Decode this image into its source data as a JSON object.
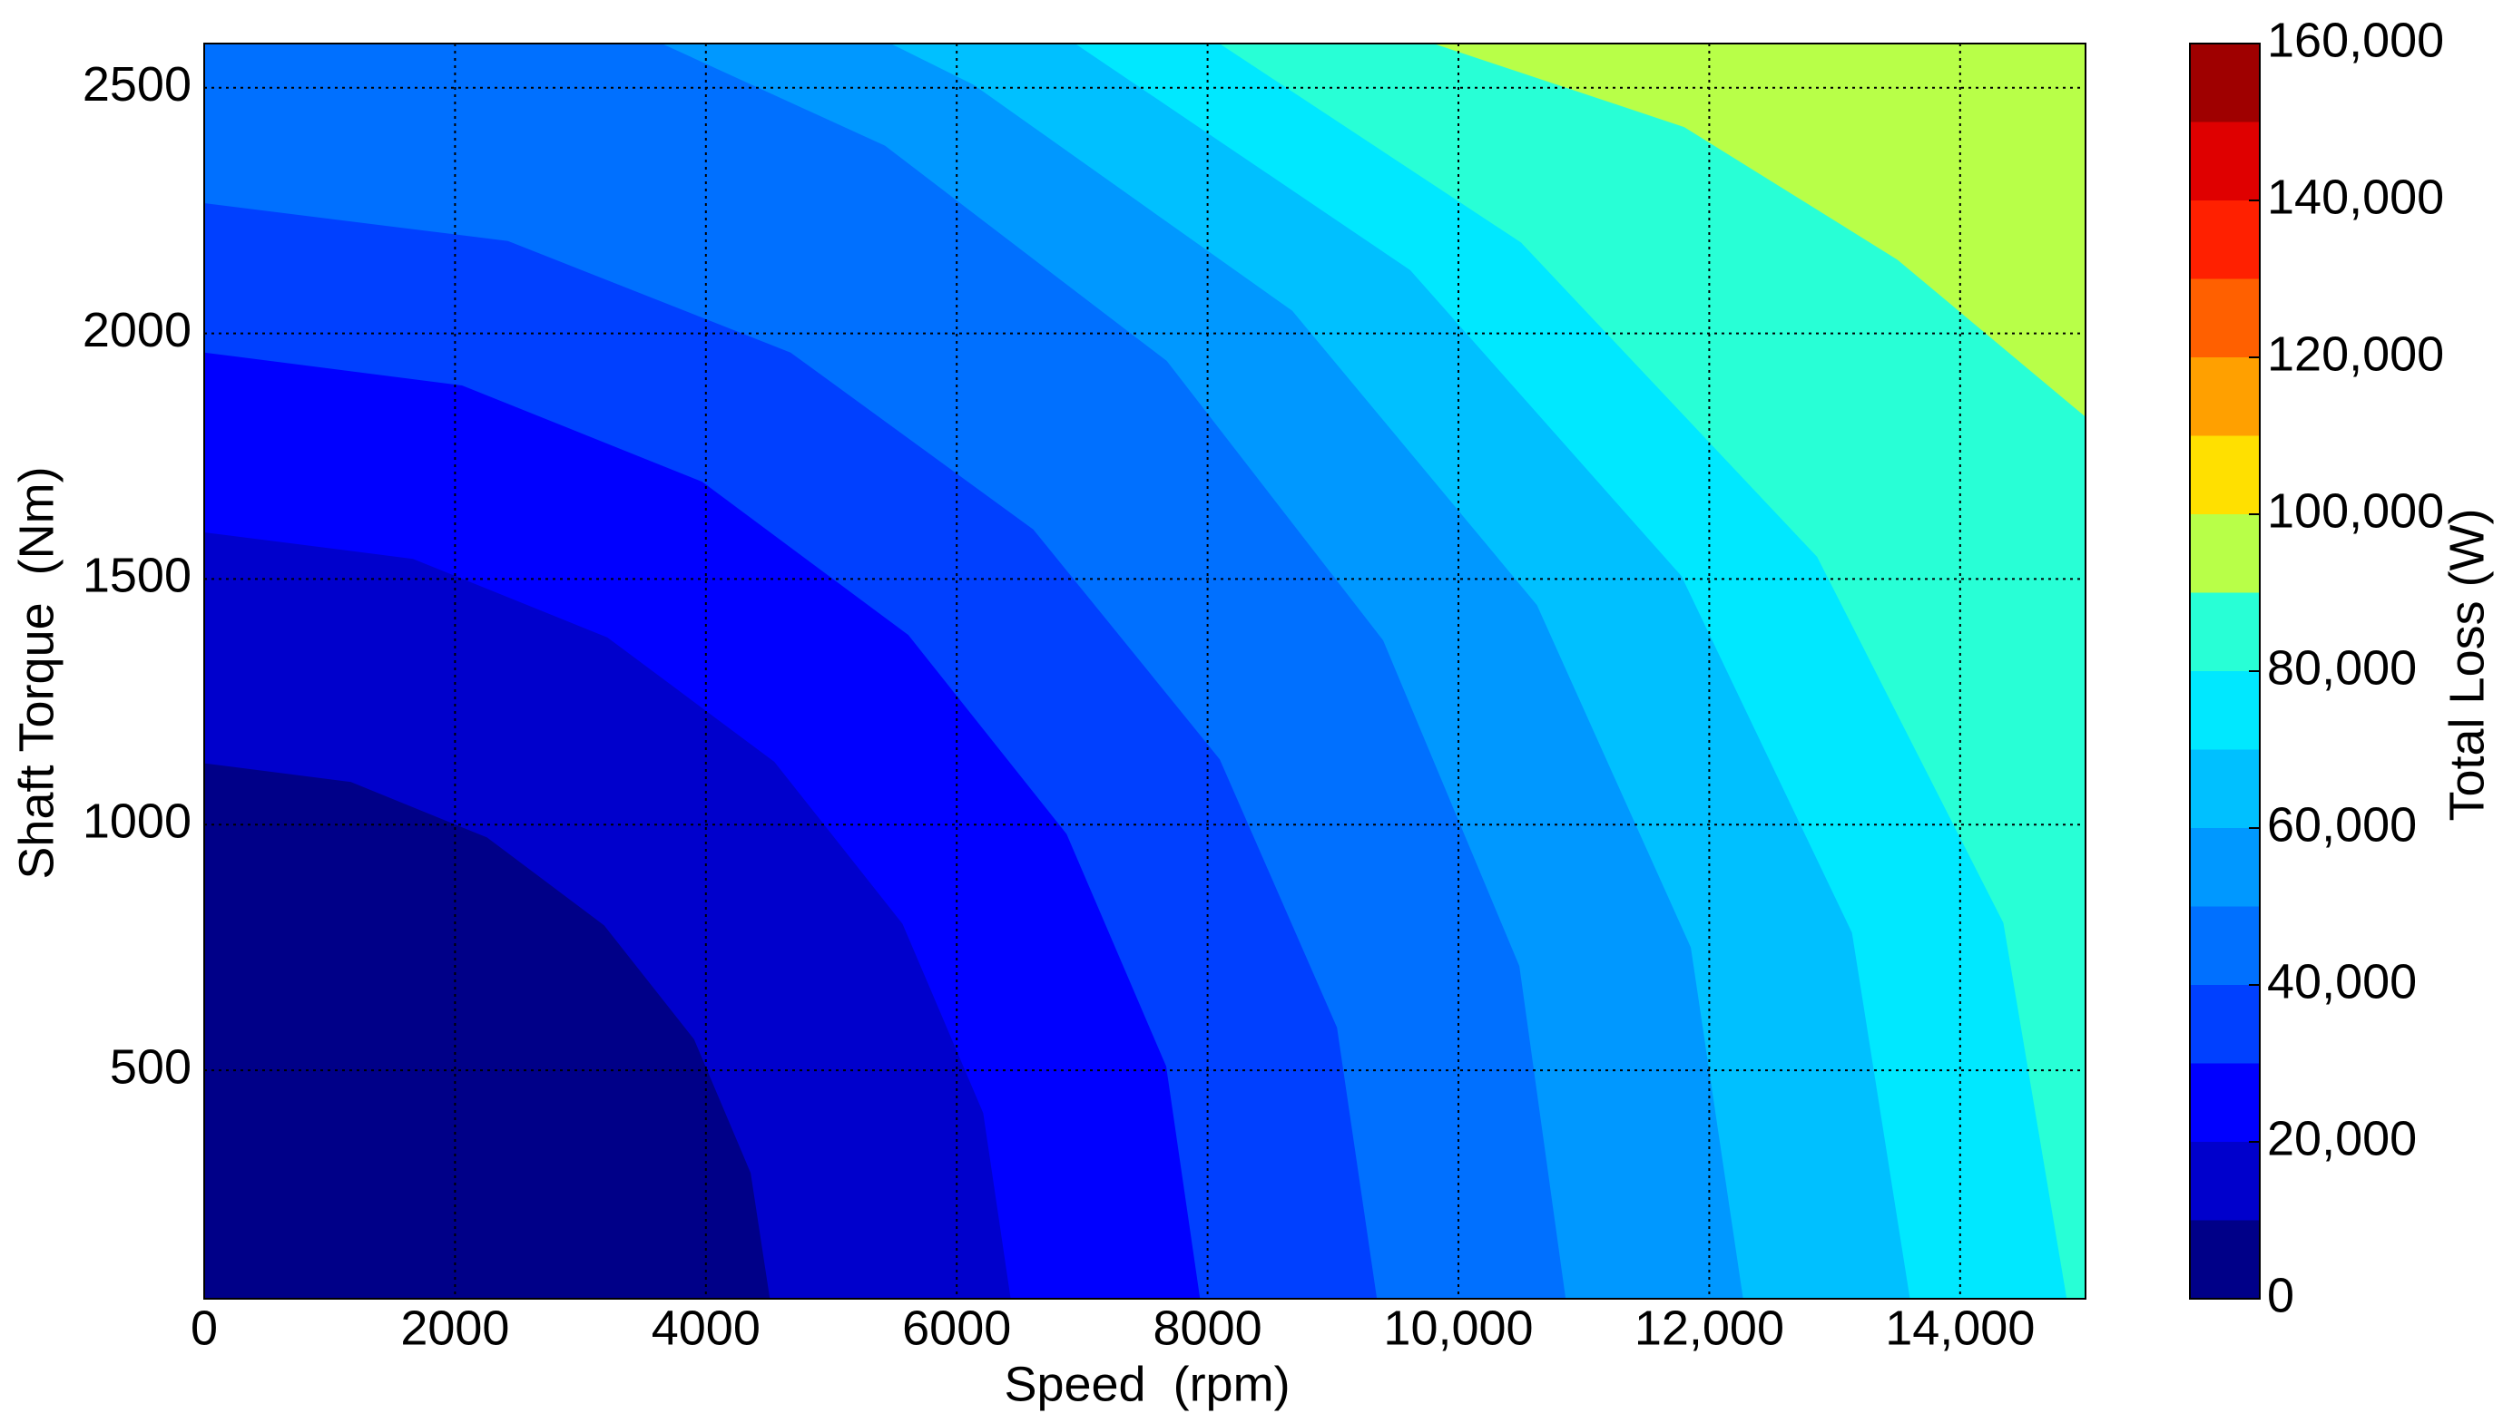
{
  "chart_data": {
    "type": "contour",
    "x_label": "Speed  (rpm)",
    "y_label": "Shaft Torque  (Nm)",
    "colorbar_label": "Total Loss (W)",
    "xlim": [
      0,
      15000
    ],
    "ylim": [
      35,
      2590
    ],
    "xticks": [
      0,
      2000,
      4000,
      6000,
      8000,
      {
        "value": 10000,
        "label": "10,000"
      },
      {
        "value": 12000,
        "label": "12,000"
      },
      {
        "value": 14000,
        "label": "14,000"
      }
    ],
    "yticks": [
      500,
      1000,
      1500,
      2000,
      2500
    ],
    "grid": true,
    "clim": [
      0,
      160000
    ],
    "cticks": [
      0,
      {
        "value": 20000,
        "label": "20,000"
      },
      {
        "value": 40000,
        "label": "40,000"
      },
      {
        "value": 60000,
        "label": "60,000"
      },
      {
        "value": 80000,
        "label": "80,000"
      },
      {
        "value": 100000,
        "label": "100,000"
      },
      {
        "value": 120000,
        "label": "120,000"
      },
      {
        "value": 140000,
        "label": "140,000"
      },
      {
        "value": 160000,
        "label": "160,000"
      }
    ],
    "levels": [
      0,
      10000,
      20000,
      30000,
      40000,
      50000,
      60000,
      70000,
      80000,
      90000,
      100000,
      110000,
      120000,
      130000,
      140000,
      150000,
      160000
    ],
    "colors": [
      "#000088",
      "#0000cc",
      "#0000ff",
      "#0040ff",
      "#0070ff",
      "#0098ff",
      "#00c0ff",
      "#00e8ff",
      "#28ffd6",
      "#b8ff48",
      "#ffe000",
      "#ffa000",
      "#ff6000",
      "#ff2000",
      "#df0000",
      "#9f0000"
    ],
    "contours": [
      {
        "level": 10000,
        "x": [
          4510,
          4357,
          3906,
          3189,
          2255,
          1168,
          0
        ],
        "y": [
          35,
          291,
          563,
          795,
          974,
          1087,
          1125
        ]
      },
      {
        "level": 20000,
        "x": [
          6430,
          6211,
          5568,
          4546,
          3215,
          1665,
          0
        ],
        "y": [
          35,
          413,
          798,
          1128,
          1381,
          1541,
          1595
        ]
      },
      {
        "level": 30000,
        "x": [
          7940,
          7670,
          6876,
          5614,
          3970,
          2056,
          0
        ],
        "y": [
          35,
          508,
          981,
          1386,
          1698,
          1894,
          1961
        ]
      },
      {
        "level": 40000,
        "x": [
          9350,
          9032,
          8097,
          6610,
          4675,
          2422,
          0
        ],
        "y": [
          35,
          587,
          1133,
          1601,
          1961,
          2188,
          2265
        ]
      },
      {
        "level": 50000,
        "x": [
          10855,
          10486,
          9400,
          7674,
          5428,
          3647
        ],
        "y": [
          35,
          712,
          1375,
          1944,
          2382,
          2590
        ]
      },
      {
        "level": 60000,
        "x": [
          12270,
          11853,
          10626,
          8675,
          6135,
          5473
        ],
        "y": [
          35,
          750,
          1447,
          2046,
          2506,
          2590
        ]
      },
      {
        "level": 70000,
        "x": [
          13600,
          13138,
          11778,
          9615,
          6943
        ],
        "y": [
          35,
          780,
          1506,
          2129,
          2590
        ]
      },
      {
        "level": 80000,
        "x": [
          14850,
          14345,
          12860,
          10499,
          8094
        ],
        "y": [
          35,
          800,
          1545,
          2185,
          2590
        ]
      },
      {
        "level": 90000,
        "x": [
          15000,
          13500,
          11800,
          9800
        ],
        "y": [
          1830,
          2150,
          2420,
          2590
        ]
      }
    ]
  }
}
